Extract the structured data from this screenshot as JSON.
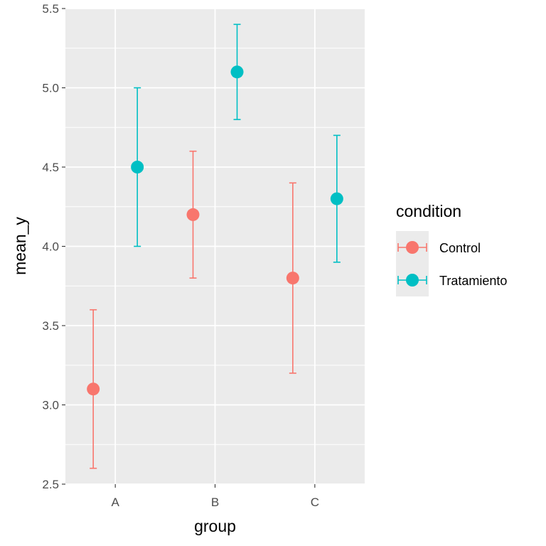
{
  "chart_data": {
    "type": "scatter",
    "title": "",
    "xlabel": "group",
    "ylabel": "mean_y",
    "categories": [
      "A",
      "B",
      "C"
    ],
    "ylim": [
      2.5,
      5.5
    ],
    "y_ticks": [
      "2.5",
      "3.0",
      "3.5",
      "4.0",
      "4.5",
      "5.0",
      "5.5"
    ],
    "grid": true,
    "legend": {
      "title": "condition",
      "placement": "right"
    },
    "series": [
      {
        "name": "Control",
        "color": "#F8766D",
        "values": [
          3.1,
          4.2,
          3.8
        ],
        "lower": [
          2.6,
          3.8,
          3.2
        ],
        "upper": [
          3.6,
          4.6,
          4.4
        ]
      },
      {
        "name": "Tratamiento",
        "color": "#00BFC4",
        "values": [
          4.5,
          5.1,
          4.3
        ],
        "lower": [
          4.0,
          4.8,
          3.9
        ],
        "upper": [
          5.0,
          5.4,
          4.7
        ]
      }
    ],
    "errorbars": true
  }
}
